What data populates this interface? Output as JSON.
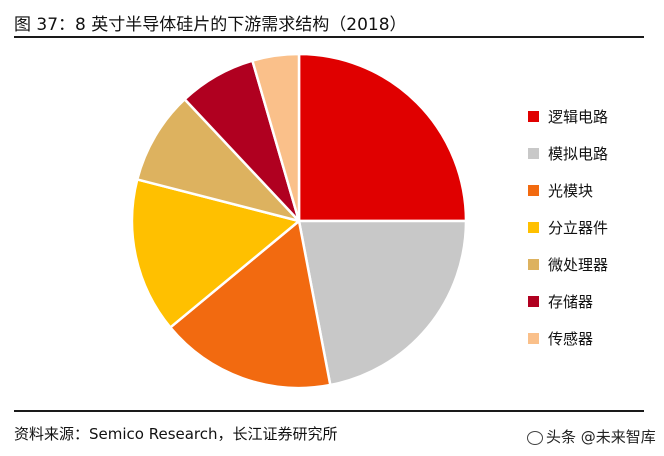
{
  "title": "图 37：8 英寸半导体硅片的下游需求结构（2018）",
  "source": "资料来源：Semico Research，长江证券研究所",
  "watermark": "头条 @未来智库",
  "chart_data": {
    "type": "pie",
    "title": "图 37：8 英寸半导体硅片的下游需求结构（2018）",
    "start_angle_deg": 0,
    "direction": "clockwise",
    "legend_position": "right",
    "slices": [
      {
        "label": "逻辑电路",
        "value": 25,
        "color": "#e00000"
      },
      {
        "label": "模拟电路",
        "value": 22,
        "color": "#c8c8c8"
      },
      {
        "label": "光模块",
        "value": 17,
        "color": "#f26a10"
      },
      {
        "label": "分立器件",
        "value": 15,
        "color": "#ffc000"
      },
      {
        "label": "微处理器",
        "value": 9,
        "color": "#ddb25f"
      },
      {
        "label": "存储器",
        "value": 7.5,
        "color": "#b00020"
      },
      {
        "label": "传感器",
        "value": 4.5,
        "color": "#fac08a"
      }
    ]
  }
}
